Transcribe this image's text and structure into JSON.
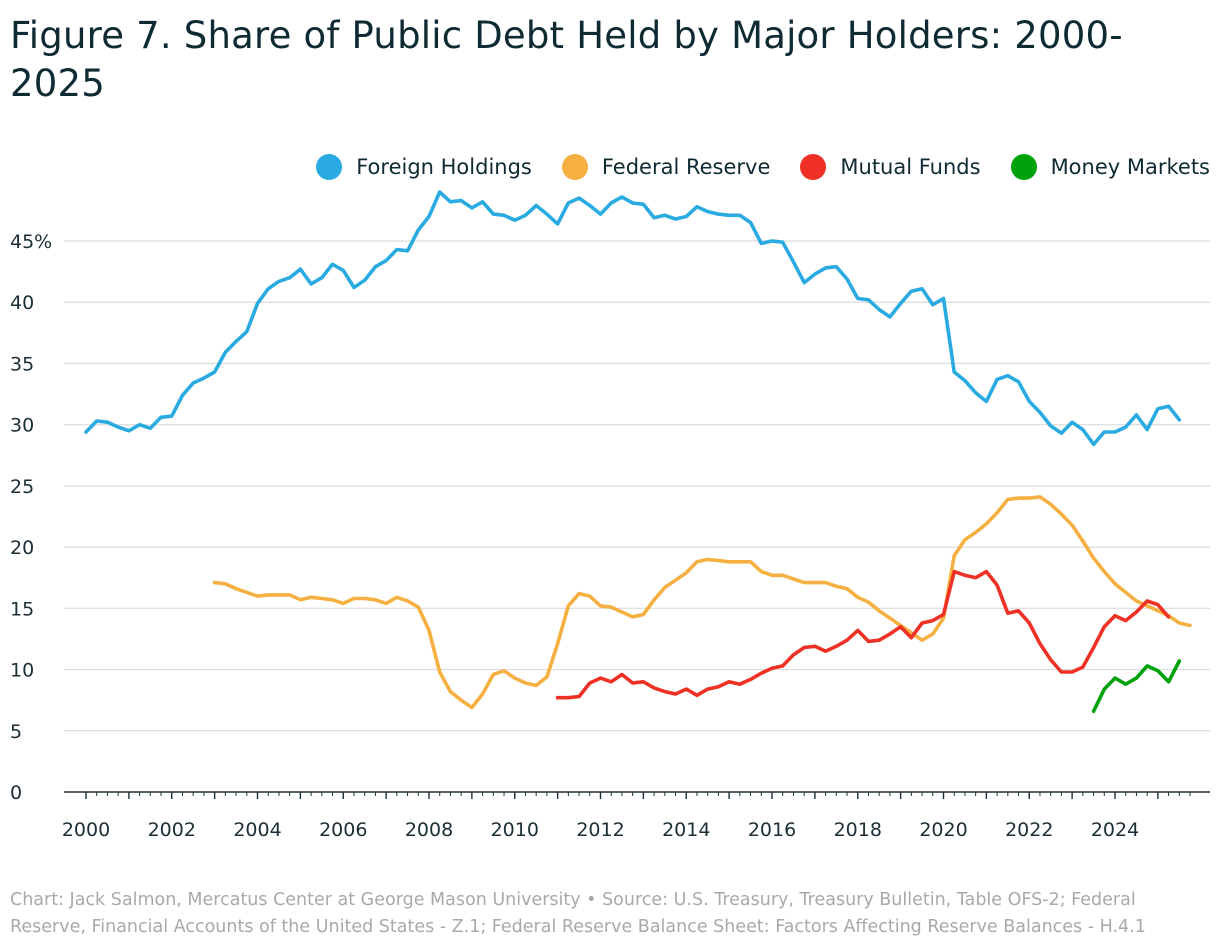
{
  "title": "Figure 7. Share of Public Debt Held by Major Holders: 2000-2025",
  "source": "Chart: Jack Salmon, Mercatus Center at George Mason University • Source: U.S. Treasury, Treasury Bulletin, Table OFS-2; Federal Reserve, Financial Accounts of the United States - Z.1; Federal Reserve Balance Sheet: Factors Affecting Reserve Balances - H.4.1",
  "chart_data": {
    "type": "line",
    "title": "Figure 7. Share of Public Debt Held by Major Holders: 2000-2025",
    "xlabel": "",
    "ylabel": "",
    "xlim": [
      1999.5,
      2026.2
    ],
    "ylim": [
      0,
      48
    ],
    "y_ticks": [
      0,
      5,
      10,
      15,
      20,
      25,
      30,
      35,
      40,
      45
    ],
    "y_tick_labels": [
      "0",
      "5",
      "10",
      "15",
      "20",
      "25",
      "30",
      "35",
      "40",
      "45%"
    ],
    "x_ticks": [
      2000,
      2002,
      2004,
      2006,
      2008,
      2010,
      2012,
      2014,
      2016,
      2018,
      2020,
      2022,
      2024
    ],
    "x_tick_labels": [
      "2000",
      "2002",
      "2004",
      "2006",
      "2008",
      "2010",
      "2012",
      "2014",
      "2016",
      "2018",
      "2020",
      "2022",
      "2024"
    ],
    "grid": true,
    "legend_position": "top-right",
    "series": [
      {
        "name": "Foreign Holdings",
        "color": "#29abe2",
        "x": [
          2000.0,
          2000.25,
          2000.5,
          2000.75,
          2001.0,
          2001.25,
          2001.5,
          2001.75,
          2002.0,
          2002.25,
          2002.5,
          2002.75,
          2003.0,
          2003.25,
          2003.5,
          2003.75,
          2004.0,
          2004.25,
          2004.5,
          2004.75,
          2005.0,
          2005.25,
          2005.5,
          2005.75,
          2006.0,
          2006.25,
          2006.5,
          2006.75,
          2007.0,
          2007.25,
          2007.5,
          2007.75,
          2008.0,
          2008.25,
          2008.5,
          2008.75,
          2009.0,
          2009.25,
          2009.5,
          2009.75,
          2010.0,
          2010.25,
          2010.5,
          2010.75,
          2011.0,
          2011.25,
          2011.5,
          2011.75,
          2012.0,
          2012.25,
          2012.5,
          2012.75,
          2013.0,
          2013.25,
          2013.5,
          2013.75,
          2014.0,
          2014.25,
          2014.5,
          2014.75,
          2015.0,
          2015.25,
          2015.5,
          2015.75,
          2016.0,
          2016.25,
          2016.5,
          2016.75,
          2017.0,
          2017.25,
          2017.5,
          2017.75,
          2018.0,
          2018.25,
          2018.5,
          2018.75,
          2019.0,
          2019.25,
          2019.5,
          2019.75,
          2020.0,
          2020.25,
          2020.5,
          2020.75,
          2021.0,
          2021.25,
          2021.5,
          2021.75,
          2022.0,
          2022.25,
          2022.5,
          2022.75,
          2023.0,
          2023.25,
          2023.5,
          2023.75,
          2024.0,
          2024.25,
          2024.5,
          2024.75,
          2025.0,
          2025.25,
          2025.5
        ],
        "values": [
          29.4,
          30.3,
          30.2,
          29.8,
          29.5,
          30.0,
          29.7,
          30.6,
          30.7,
          32.4,
          33.4,
          33.8,
          34.3,
          35.9,
          36.8,
          37.6,
          39.9,
          41.1,
          41.7,
          42.0,
          42.7,
          41.5,
          42.0,
          43.1,
          42.6,
          41.2,
          41.8,
          42.9,
          43.4,
          44.3,
          44.2,
          45.9,
          47.0,
          49.0,
          48.2,
          48.3,
          47.7,
          48.2,
          47.2,
          47.1,
          46.7,
          47.1,
          47.9,
          47.2,
          46.4,
          48.1,
          48.5,
          47.9,
          47.2,
          48.1,
          48.6,
          48.1,
          48.0,
          46.9,
          47.1,
          46.8,
          47.0,
          47.8,
          47.4,
          47.2,
          47.1,
          47.1,
          46.5,
          44.8,
          45.0,
          44.9,
          43.3,
          41.6,
          42.3,
          42.8,
          42.9,
          41.9,
          40.3,
          40.2,
          39.4,
          38.8,
          39.9,
          40.9,
          41.1,
          39.8,
          40.3,
          34.3,
          33.6,
          32.6,
          31.9,
          33.7,
          34.0,
          33.5,
          31.9,
          31.0,
          29.9,
          29.3,
          30.2,
          29.6,
          28.4,
          29.4,
          29.4,
          29.8,
          30.8,
          29.6,
          31.3,
          31.5,
          30.4
        ]
      },
      {
        "name": "Federal Reserve",
        "color": "#f5b041",
        "x": [
          2003.0,
          2003.25,
          2003.5,
          2003.75,
          2004.0,
          2004.25,
          2004.5,
          2004.75,
          2005.0,
          2005.25,
          2005.5,
          2005.75,
          2006.0,
          2006.25,
          2006.5,
          2006.75,
          2007.0,
          2007.25,
          2007.5,
          2007.75,
          2008.0,
          2008.25,
          2008.5,
          2008.75,
          2009.0,
          2009.25,
          2009.5,
          2009.75,
          2010.0,
          2010.25,
          2010.5,
          2010.75,
          2011.0,
          2011.25,
          2011.5,
          2011.75,
          2012.0,
          2012.25,
          2012.5,
          2012.75,
          2013.0,
          2013.25,
          2013.5,
          2013.75,
          2014.0,
          2014.25,
          2014.5,
          2014.75,
          2015.0,
          2015.25,
          2015.5,
          2015.75,
          2016.0,
          2016.25,
          2016.5,
          2016.75,
          2017.0,
          2017.25,
          2017.5,
          2017.75,
          2018.0,
          2018.25,
          2018.5,
          2018.75,
          2019.0,
          2019.25,
          2019.5,
          2019.75,
          2020.0,
          2020.25,
          2020.5,
          2020.75,
          2021.0,
          2021.25,
          2021.5,
          2021.75,
          2022.0,
          2022.25,
          2022.5,
          2022.75,
          2023.0,
          2023.25,
          2023.5,
          2023.75,
          2024.0,
          2024.25,
          2024.5,
          2024.75,
          2025.0,
          2025.25,
          2025.5,
          2025.75
        ],
        "values": [
          17.1,
          17.0,
          16.6,
          16.3,
          16.0,
          16.1,
          16.1,
          16.1,
          15.7,
          15.9,
          15.8,
          15.7,
          15.4,
          15.8,
          15.8,
          15.7,
          15.4,
          15.9,
          15.6,
          15.1,
          13.2,
          9.8,
          8.2,
          7.5,
          6.9,
          8.0,
          9.6,
          9.9,
          9.3,
          8.9,
          8.7,
          9.4,
          12.1,
          15.2,
          16.2,
          16.0,
          15.2,
          15.1,
          14.7,
          14.3,
          14.5,
          15.7,
          16.7,
          17.3,
          17.9,
          18.8,
          19.0,
          18.9,
          18.8,
          18.8,
          18.8,
          18.0,
          17.7,
          17.7,
          17.4,
          17.1,
          17.1,
          17.1,
          16.8,
          16.6,
          15.9,
          15.5,
          14.8,
          14.2,
          13.6,
          13.0,
          12.4,
          12.9,
          14.2,
          19.3,
          20.6,
          21.2,
          21.9,
          22.8,
          23.9,
          24.0,
          24.0,
          24.1,
          23.5,
          22.7,
          21.8,
          20.5,
          19.1,
          18.0,
          17.0,
          16.3,
          15.6,
          15.2,
          14.8,
          14.4,
          13.8,
          13.6
        ]
      },
      {
        "name": "Mutual Funds",
        "color": "#ee3124",
        "x": [
          2011.0,
          2011.25,
          2011.5,
          2011.75,
          2012.0,
          2012.25,
          2012.5,
          2012.75,
          2013.0,
          2013.25,
          2013.5,
          2013.75,
          2014.0,
          2014.25,
          2014.5,
          2014.75,
          2015.0,
          2015.25,
          2015.5,
          2015.75,
          2016.0,
          2016.25,
          2016.5,
          2016.75,
          2017.0,
          2017.25,
          2017.5,
          2017.75,
          2018.0,
          2018.25,
          2018.5,
          2018.75,
          2019.0,
          2019.25,
          2019.5,
          2019.75,
          2020.0,
          2020.25,
          2020.5,
          2020.75,
          2021.0,
          2021.25,
          2021.5,
          2021.75,
          2022.0,
          2022.25,
          2022.5,
          2022.75,
          2023.0,
          2023.25,
          2023.5,
          2023.75,
          2024.0,
          2024.25,
          2024.5,
          2024.75,
          2025.0,
          2025.25
        ],
        "values": [
          7.7,
          7.7,
          7.8,
          8.9,
          9.3,
          9.0,
          9.6,
          8.9,
          9.0,
          8.5,
          8.2,
          8.0,
          8.4,
          7.9,
          8.4,
          8.6,
          9.0,
          8.8,
          9.2,
          9.7,
          10.1,
          10.3,
          11.2,
          11.8,
          11.9,
          11.5,
          11.9,
          12.4,
          13.2,
          12.3,
          12.4,
          12.9,
          13.5,
          12.6,
          13.8,
          14.0,
          14.5,
          18.0,
          17.7,
          17.5,
          18.0,
          16.9,
          14.6,
          14.8,
          13.8,
          12.1,
          10.8,
          9.8,
          9.8,
          10.2,
          11.8,
          13.5,
          14.4,
          14.0,
          14.7,
          15.6,
          15.3,
          14.3
        ]
      },
      {
        "name": "Money Markets",
        "color": "#00a20c",
        "x": [
          2023.5,
          2023.75,
          2024.0,
          2024.25,
          2024.5,
          2024.75,
          2025.0,
          2025.25,
          2025.5
        ],
        "values": [
          6.6,
          8.4,
          9.3,
          8.8,
          9.3,
          10.3,
          9.9,
          9.0,
          10.7
        ]
      }
    ]
  }
}
